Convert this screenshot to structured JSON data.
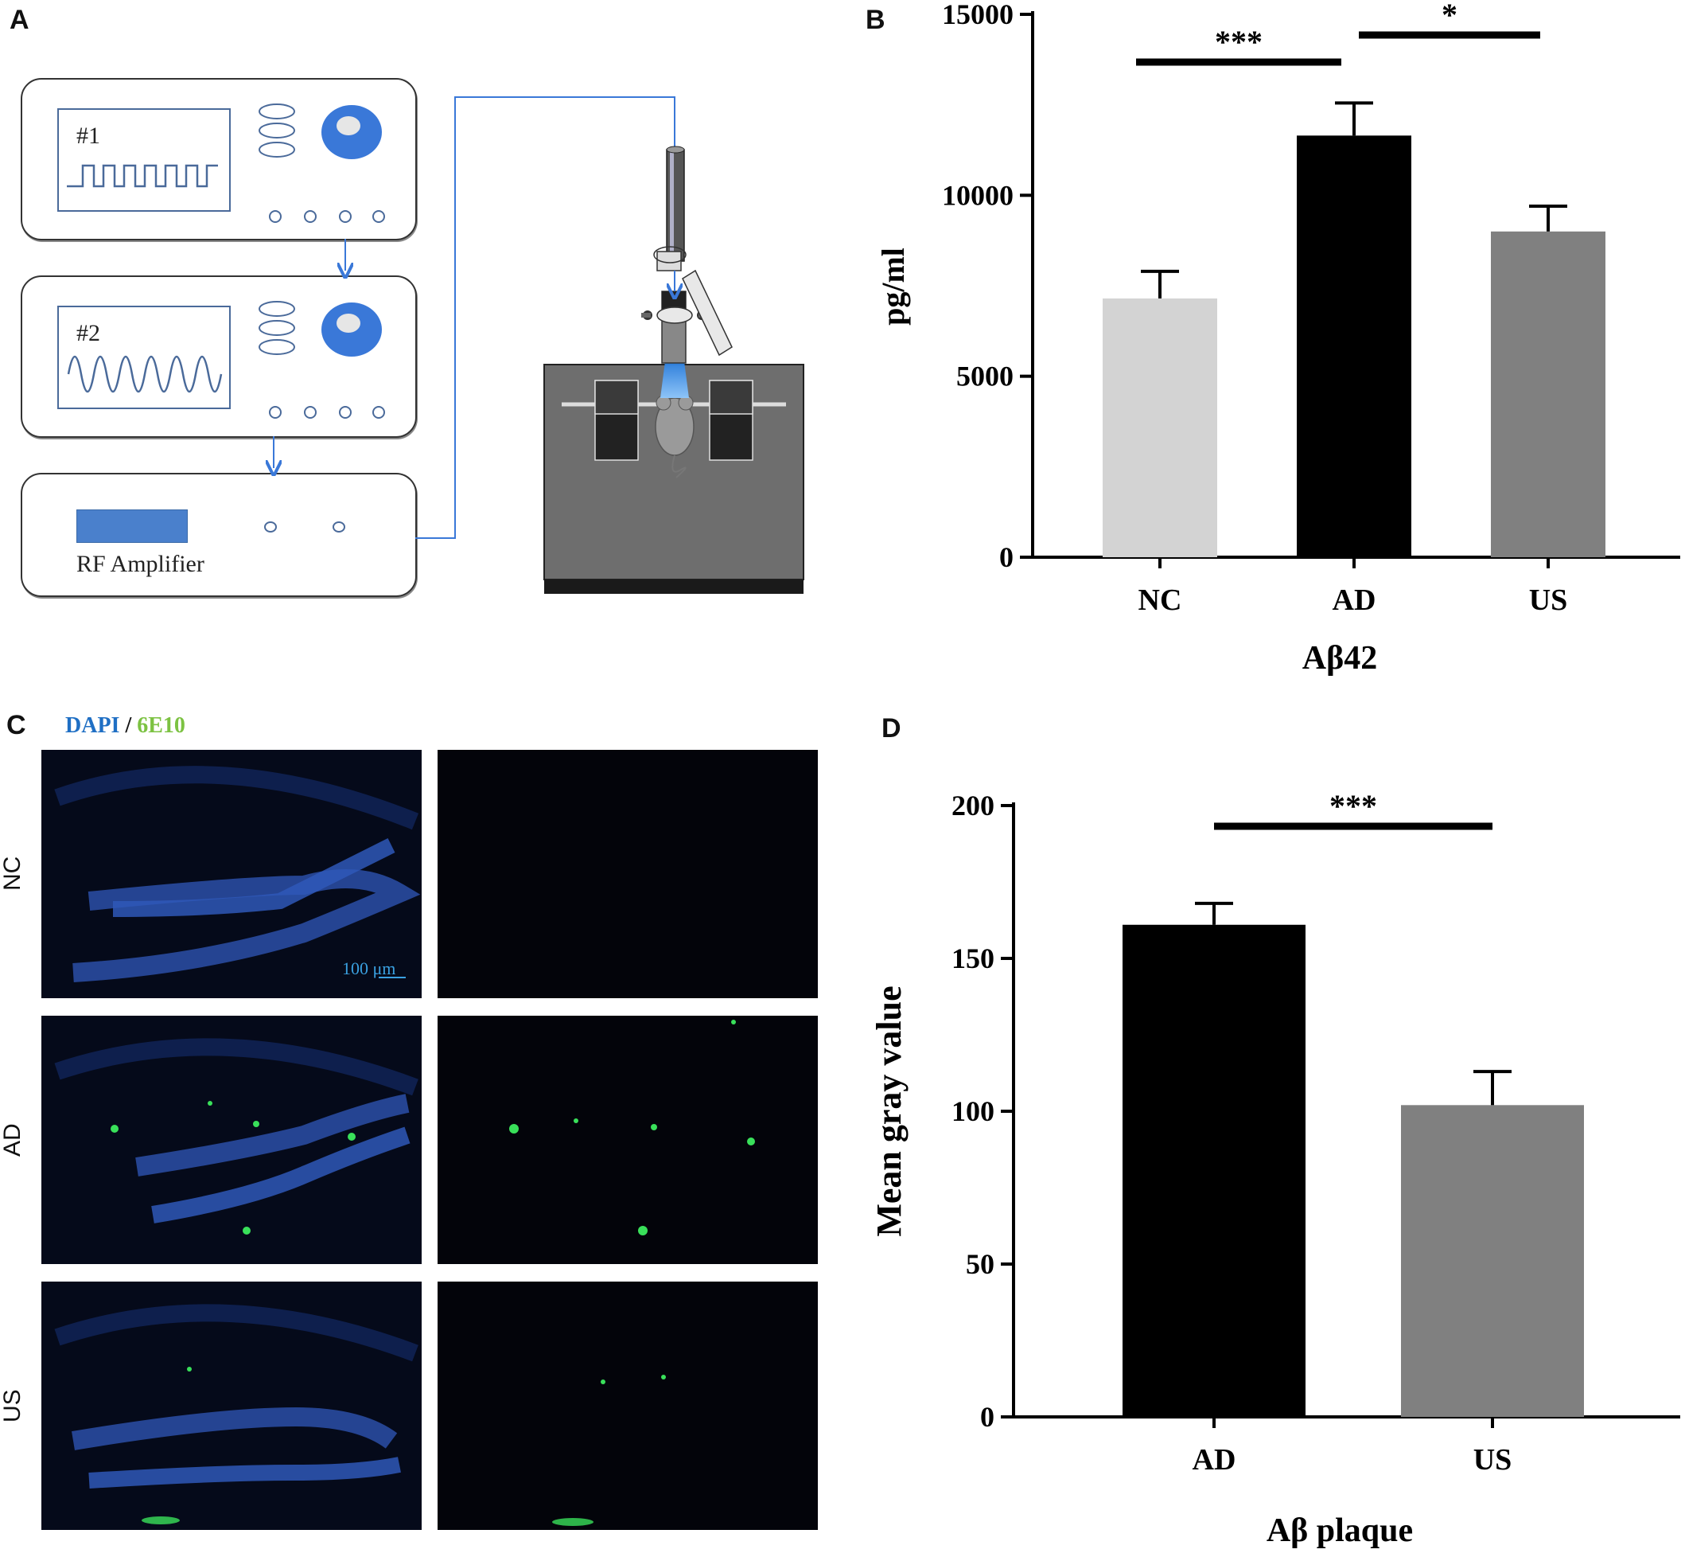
{
  "panels": {
    "a": "A",
    "b": "B",
    "c": "C",
    "d": "D"
  },
  "panel_a": {
    "generator1_label": "#1",
    "generator2_label": "#2",
    "amplifier_label": "RF Amplifier",
    "colors": {
      "accent": "#3a78d8",
      "device": "#6b6b6b",
      "screen_border": "#4a6a9a"
    }
  },
  "panel_c": {
    "stain_dapi": "DAPI",
    "stain_sep": "/",
    "stain_6e10": "6E10",
    "rows": [
      "NC",
      "AD",
      "US"
    ],
    "scale_bar": "100 μm",
    "colors": {
      "dapi": "#1f6fc4",
      "6e10": "#7cc242"
    }
  },
  "chart_data": [
    {
      "type": "bar",
      "title": "",
      "categories": [
        "NC",
        "AD",
        "US"
      ],
      "values": [
        7150,
        11650,
        9000
      ],
      "errors": [
        750,
        900,
        700
      ],
      "colors": [
        "#d3d3d3",
        "#000000",
        "#808080"
      ],
      "xlabel": "Aβ42",
      "ylabel": "pg/ml",
      "ylim": [
        0,
        15000
      ],
      "yticks": [
        "0",
        "5000",
        "10000",
        "15000"
      ],
      "significance": [
        {
          "from": 0,
          "to": 1,
          "label": "***"
        },
        {
          "from": 1,
          "to": 2,
          "label": "*"
        }
      ]
    },
    {
      "type": "bar",
      "title": "",
      "categories": [
        "AD",
        "US"
      ],
      "values": [
        161,
        102
      ],
      "errors": [
        7,
        11
      ],
      "colors": [
        "#000000",
        "#808080"
      ],
      "xlabel": "Aβ plaque",
      "ylabel": "Mean gray value",
      "ylim": [
        0,
        200
      ],
      "yticks": [
        "0",
        "50",
        "100",
        "150",
        "200"
      ],
      "significance": [
        {
          "from": 0,
          "to": 1,
          "label": "***"
        }
      ]
    }
  ]
}
